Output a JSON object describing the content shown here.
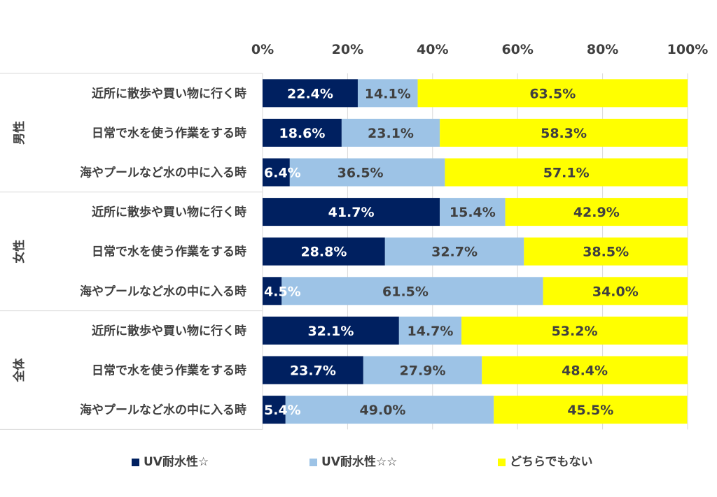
{
  "chart_data": {
    "type": "bar",
    "orientation": "horizontal",
    "stacked": true,
    "percent_stacked": true,
    "title": "",
    "xlabel": "",
    "ylabel": "",
    "xlim": [
      0,
      100
    ],
    "x_ticks": [
      "0%",
      "20%",
      "40%",
      "60%",
      "80%",
      "100%"
    ],
    "grid": true,
    "legend_position": "bottom",
    "groups": [
      {
        "label": "男性",
        "categories": [
          "近所に散歩や買い物に行く時",
          "日常で水を使う作業をする時",
          "海やプールなど水の中に入る時"
        ]
      },
      {
        "label": "女性",
        "categories": [
          "近所に散歩や買い物に行く時",
          "日常で水を使う作業をする時",
          "海やプールなど水の中に入る時"
        ]
      },
      {
        "label": "全体",
        "categories": [
          "近所に散歩や買い物に行く時",
          "日常で水を使う作業をする時",
          "海やプールなど水の中に入る時"
        ]
      }
    ],
    "series": [
      {
        "name": "UV耐水性☆",
        "color": "#002060",
        "label_color": "#ffffff",
        "values": [
          22.4,
          18.6,
          6.4,
          41.7,
          28.8,
          4.5,
          32.1,
          23.7,
          5.4
        ],
        "labels": [
          "22.4%",
          "18.6%",
          "6.4%",
          "41.7%",
          "28.8%",
          "4.5%",
          "32.1%",
          "23.7%",
          "5.4%"
        ]
      },
      {
        "name": "UV耐水性☆☆",
        "color": "#9dc3e6",
        "label_color": "#404040",
        "values": [
          14.1,
          23.1,
          36.5,
          15.4,
          32.7,
          61.5,
          14.7,
          27.9,
          49.0
        ],
        "labels": [
          "14.1%",
          "23.1%",
          "36.5%",
          "15.4%",
          "32.7%",
          "61.5%",
          "14.7%",
          "27.9%",
          "49.0%"
        ]
      },
      {
        "name": "どちらでもない",
        "color": "#ffff00",
        "label_color": "#404040",
        "values": [
          63.5,
          58.3,
          57.1,
          42.9,
          38.5,
          34.0,
          53.2,
          48.4,
          45.5
        ],
        "labels": [
          "63.5%",
          "58.3%",
          "57.1%",
          "42.9%",
          "38.5%",
          "34.0%",
          "53.2%",
          "48.4%",
          "45.5%"
        ]
      }
    ]
  },
  "legend": {
    "items": [
      {
        "label": "UV耐水性☆",
        "color": "#002060"
      },
      {
        "label": "UV耐水性☆☆",
        "color": "#9dc3e6"
      },
      {
        "label": "どちらでもない",
        "color": "#ffff00"
      }
    ]
  }
}
